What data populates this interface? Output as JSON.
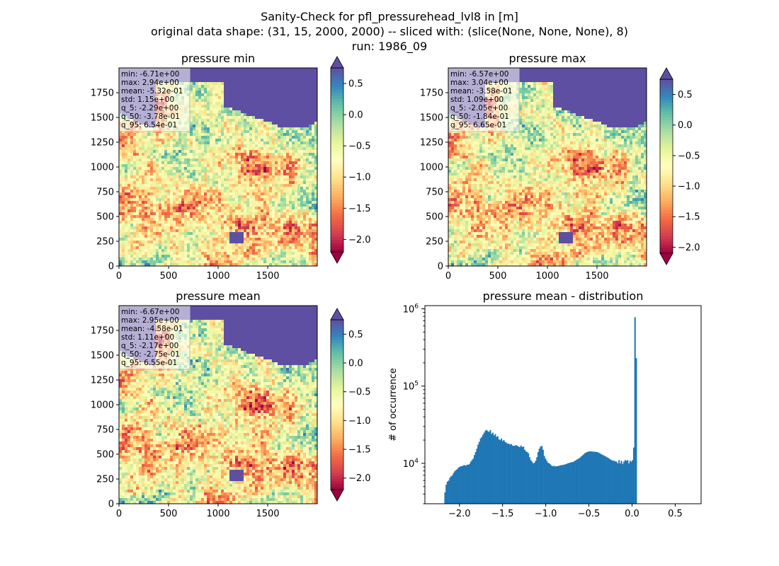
{
  "figure": {
    "title_lines": [
      "Sanity-Check for pfl_pressurehead_lvl8 in [m]",
      "original data shape: (31, 15, 2000, 2000) -- sliced with: (slice(None, None, None), 8)",
      "run: 1986_09"
    ]
  },
  "chart_data": [
    {
      "type": "heatmap",
      "title": "pressure min",
      "xlim": [
        0,
        2000
      ],
      "ylim": [
        0,
        2000
      ],
      "xticks": [
        0,
        500,
        1000,
        1500
      ],
      "yticks": [
        0,
        250,
        500,
        750,
        1000,
        1250,
        1500,
        1750
      ],
      "colormap": "Spectral",
      "colorbar": {
        "vmin": -2.2,
        "vmax": 0.75,
        "ticks": [
          0.5,
          0.0,
          -0.5,
          -1.0,
          -1.5,
          -2.0
        ],
        "tick_labels": [
          "0.5",
          "0.0",
          "−0.5",
          "−1.0",
          "−1.5",
          "−2.0"
        ],
        "extend": "both"
      },
      "stats": [
        "min: -6.71e+00",
        "max: 2.94e+00",
        "mean: -5.32e-01",
        "std: 1.15e+00",
        "q_5: -2.29e+00",
        "q_50: -3.78e-01",
        "q_95: 6.54e-01"
      ]
    },
    {
      "type": "heatmap",
      "title": "pressure max",
      "xlim": [
        0,
        2000
      ],
      "ylim": [
        0,
        2000
      ],
      "xticks": [
        0,
        500,
        1000,
        1500
      ],
      "yticks": [
        0,
        250,
        500,
        750,
        1000,
        1250,
        1500,
        1750
      ],
      "colormap": "Spectral",
      "colorbar": {
        "vmin": -2.1,
        "vmax": 0.75,
        "ticks": [
          0.5,
          0.0,
          -0.5,
          -1.0,
          -1.5,
          -2.0
        ],
        "tick_labels": [
          "0.5",
          "0.0",
          "−0.5",
          "−1.0",
          "−1.5",
          "−2.0"
        ],
        "extend": "both"
      },
      "stats": [
        "min: -6.57e+00",
        "max: 3.04e+00",
        "mean: -3.58e-01",
        "std: 1.09e+00",
        "q_5: -2.05e+00",
        "q_50: -1.84e-01",
        "q_95: 6.65e-01"
      ]
    },
    {
      "type": "heatmap",
      "title": "pressure mean",
      "xlim": [
        0,
        2000
      ],
      "ylim": [
        0,
        2000
      ],
      "xticks": [
        0,
        500,
        1000,
        1500
      ],
      "yticks": [
        0,
        250,
        500,
        750,
        1000,
        1250,
        1500,
        1750
      ],
      "colormap": "Spectral",
      "colorbar": {
        "vmin": -2.2,
        "vmax": 0.75,
        "ticks": [
          0.5,
          0.0,
          -0.5,
          -1.0,
          -1.5,
          -2.0
        ],
        "tick_labels": [
          "0.5",
          "0.0",
          "−0.5",
          "−1.0",
          "−1.5",
          "−2.0"
        ],
        "extend": "both"
      },
      "stats": [
        "min: -6.67e+00",
        "max: 2.95e+00",
        "mean: -4.58e-01",
        "std: 1.11e+00",
        "q_5: -2.17e+00",
        "q_50: -2.75e-01",
        "q_95: 6.55e-01"
      ]
    },
    {
      "type": "bar",
      "title": "pressure mean - distribution",
      "xlabel": "",
      "ylabel": "# of occurrence",
      "yscale": "log",
      "xlim": [
        -2.4,
        0.8
      ],
      "ylim": [
        3000,
        1100000
      ],
      "xticks": [
        -2.0,
        -1.5,
        -1.0,
        -0.5,
        0.0,
        0.5
      ],
      "xtick_labels": [
        "−2.0",
        "−1.5",
        "−1.0",
        "−0.5",
        "0.0",
        "0.5"
      ],
      "yticks": [
        10000,
        100000,
        1000000
      ],
      "color": "#1f77b4",
      "bin_width": 0.0142,
      "x_start": -2.175,
      "values": [
        4200,
        5300,
        5800,
        6000,
        6500,
        6800,
        7000,
        7500,
        7900,
        8200,
        8400,
        8800,
        9000,
        9200,
        9200,
        9400,
        9500,
        9300,
        9600,
        9600,
        9800,
        10500,
        11000,
        11500,
        12800,
        14000,
        15500,
        17500,
        19000,
        21000,
        22000,
        23500,
        25000,
        26500,
        27000,
        26000,
        25500,
        27000,
        24000,
        25000,
        23000,
        24000,
        22000,
        22500,
        20500,
        20000,
        21000,
        19500,
        20000,
        19000,
        18500,
        18000,
        18000,
        17500,
        17800,
        17000,
        16800,
        17000,
        17200,
        16800,
        16500,
        16200,
        17000,
        16300,
        16500,
        15000,
        14300,
        14000,
        13500,
        12000,
        11000,
        10500,
        10000,
        10200,
        10800,
        12000,
        14000,
        15500,
        16500,
        16800,
        15000,
        12500,
        11500,
        10800,
        10200,
        10000,
        9700,
        9300,
        9200,
        9300,
        9100,
        9200,
        9200,
        9300,
        9400,
        9500,
        9500,
        9600,
        9700,
        9800,
        10000,
        10100,
        10200,
        10300,
        10400,
        10500,
        10800,
        11000,
        11300,
        11500,
        11800,
        12200,
        12600,
        13000,
        13500,
        13800,
        14000,
        14200,
        14300,
        14300,
        14200,
        14200,
        14100,
        14100,
        14000,
        13800,
        13600,
        13300,
        13000,
        12800,
        12500,
        12300,
        12000,
        11800,
        11500,
        11200,
        11000,
        10800,
        10800,
        10600,
        10500,
        10000,
        11000,
        10000,
        10800,
        9800,
        10500,
        11000,
        10800,
        11000,
        10000,
        10800,
        10500,
        11000,
        16000,
        780000,
        230000
      ]
    }
  ]
}
